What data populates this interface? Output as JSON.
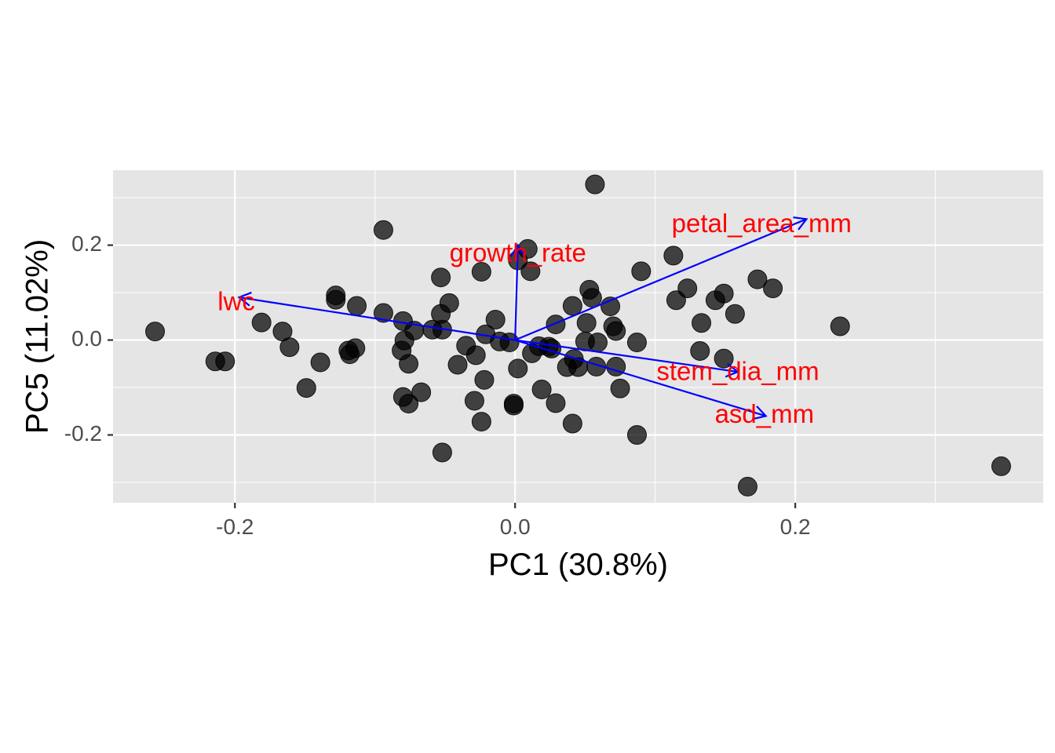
{
  "chart_data": {
    "type": "scatter",
    "title": "",
    "xlabel": "PC1 (30.8%)",
    "ylabel": "PC5 (11.02%)",
    "xlim": [
      -0.287,
      0.377
    ],
    "ylim": [
      -0.343,
      0.358
    ],
    "x_ticks": [
      {
        "value": -0.2,
        "label": "-0.2"
      },
      {
        "value": 0.0,
        "label": "0.0"
      },
      {
        "value": 0.2,
        "label": "0.2"
      }
    ],
    "y_ticks": [
      {
        "value": -0.2,
        "label": "-0.2"
      },
      {
        "value": 0.0,
        "label": "0.0"
      },
      {
        "value": 0.2,
        "label": "0.2"
      }
    ],
    "grid": true,
    "legend": "none",
    "colors": {
      "panel_background": "#e5e5e5",
      "grid": "#ffffff",
      "points": "#000000",
      "arrows": "#0000ff",
      "loading_labels": "#ff0000"
    },
    "points": [
      {
        "x": -0.257,
        "y": 0.018
      },
      {
        "x": -0.214,
        "y": -0.045
      },
      {
        "x": -0.207,
        "y": -0.045
      },
      {
        "x": -0.181,
        "y": 0.037
      },
      {
        "x": -0.166,
        "y": 0.018
      },
      {
        "x": -0.161,
        "y": -0.015
      },
      {
        "x": -0.149,
        "y": -0.101
      },
      {
        "x": -0.139,
        "y": -0.047
      },
      {
        "x": -0.128,
        "y": 0.094
      },
      {
        "x": -0.128,
        "y": 0.085
      },
      {
        "x": -0.119,
        "y": -0.022
      },
      {
        "x": -0.118,
        "y": -0.03
      },
      {
        "x": -0.114,
        "y": -0.017
      },
      {
        "x": -0.113,
        "y": 0.072
      },
      {
        "x": -0.094,
        "y": 0.232
      },
      {
        "x": -0.094,
        "y": 0.057
      },
      {
        "x": -0.08,
        "y": 0.04
      },
      {
        "x": -0.081,
        "y": -0.022
      },
      {
        "x": -0.079,
        "y": -0.001
      },
      {
        "x": -0.08,
        "y": -0.12
      },
      {
        "x": -0.076,
        "y": -0.134
      },
      {
        "x": -0.076,
        "y": -0.05
      },
      {
        "x": -0.072,
        "y": 0.02
      },
      {
        "x": -0.067,
        "y": -0.11
      },
      {
        "x": -0.059,
        "y": 0.022
      },
      {
        "x": -0.053,
        "y": 0.132
      },
      {
        "x": -0.053,
        "y": 0.055
      },
      {
        "x": -0.052,
        "y": 0.022
      },
      {
        "x": -0.052,
        "y": -0.237
      },
      {
        "x": -0.047,
        "y": 0.078
      },
      {
        "x": -0.041,
        "y": -0.052
      },
      {
        "x": -0.035,
        "y": -0.012
      },
      {
        "x": -0.029,
        "y": -0.128
      },
      {
        "x": -0.028,
        "y": -0.032
      },
      {
        "x": -0.024,
        "y": 0.144
      },
      {
        "x": -0.024,
        "y": -0.172
      },
      {
        "x": -0.022,
        "y": -0.084
      },
      {
        "x": -0.021,
        "y": 0.012
      },
      {
        "x": -0.014,
        "y": 0.043
      },
      {
        "x": -0.011,
        "y": -0.003
      },
      {
        "x": -0.004,
        "y": -0.005
      },
      {
        "x": -0.001,
        "y": -0.134
      },
      {
        "x": -0.001,
        "y": -0.138
      },
      {
        "x": 0.002,
        "y": -0.06
      },
      {
        "x": 0.002,
        "y": 0.168
      },
      {
        "x": 0.009,
        "y": 0.192
      },
      {
        "x": 0.011,
        "y": 0.145
      },
      {
        "x": 0.012,
        "y": -0.028
      },
      {
        "x": 0.017,
        "y": -0.013
      },
      {
        "x": 0.019,
        "y": -0.104
      },
      {
        "x": 0.024,
        "y": -0.014
      },
      {
        "x": 0.026,
        "y": -0.018
      },
      {
        "x": 0.029,
        "y": -0.133
      },
      {
        "x": 0.029,
        "y": 0.033
      },
      {
        "x": 0.037,
        "y": -0.057
      },
      {
        "x": 0.041,
        "y": -0.176
      },
      {
        "x": 0.041,
        "y": 0.072
      },
      {
        "x": 0.042,
        "y": -0.04
      },
      {
        "x": 0.045,
        "y": -0.057
      },
      {
        "x": 0.05,
        "y": -0.003
      },
      {
        "x": 0.051,
        "y": 0.036
      },
      {
        "x": 0.053,
        "y": 0.106
      },
      {
        "x": 0.055,
        "y": 0.089
      },
      {
        "x": 0.057,
        "y": 0.328
      },
      {
        "x": 0.058,
        "y": -0.056
      },
      {
        "x": 0.059,
        "y": -0.005
      },
      {
        "x": 0.068,
        "y": 0.071
      },
      {
        "x": 0.07,
        "y": 0.029
      },
      {
        "x": 0.072,
        "y": 0.019
      },
      {
        "x": 0.072,
        "y": -0.056
      },
      {
        "x": 0.075,
        "y": -0.102
      },
      {
        "x": 0.087,
        "y": -0.005
      },
      {
        "x": 0.087,
        "y": -0.2
      },
      {
        "x": 0.09,
        "y": 0.145
      },
      {
        "x": 0.113,
        "y": 0.178
      },
      {
        "x": 0.115,
        "y": 0.084
      },
      {
        "x": 0.123,
        "y": 0.109
      },
      {
        "x": 0.132,
        "y": -0.023
      },
      {
        "x": 0.133,
        "y": 0.036
      },
      {
        "x": 0.143,
        "y": 0.084
      },
      {
        "x": 0.149,
        "y": 0.098
      },
      {
        "x": 0.149,
        "y": -0.039
      },
      {
        "x": 0.157,
        "y": 0.055
      },
      {
        "x": 0.166,
        "y": -0.309
      },
      {
        "x": 0.173,
        "y": 0.128
      },
      {
        "x": 0.184,
        "y": 0.109
      },
      {
        "x": 0.232,
        "y": 0.029
      },
      {
        "x": 0.347,
        "y": -0.266
      }
    ],
    "loadings": [
      {
        "name": "petal_area_mm",
        "x": 0.208,
        "y": 0.255,
        "label_x": 0.176,
        "label_y": 0.242
      },
      {
        "name": "growth_rate",
        "x": 0.002,
        "y": 0.2,
        "label_x": 0.002,
        "label_y": 0.18
      },
      {
        "name": "lwc",
        "x": -0.197,
        "y": 0.09,
        "label_x": -0.199,
        "label_y": 0.077
      },
      {
        "name": "stem_dia_mm",
        "x": 0.159,
        "y": -0.067,
        "label_x": 0.159,
        "label_y": -0.07
      },
      {
        "name": "asd_mm",
        "x": 0.179,
        "y": -0.16,
        "label_x": 0.178,
        "label_y": -0.16
      }
    ]
  }
}
